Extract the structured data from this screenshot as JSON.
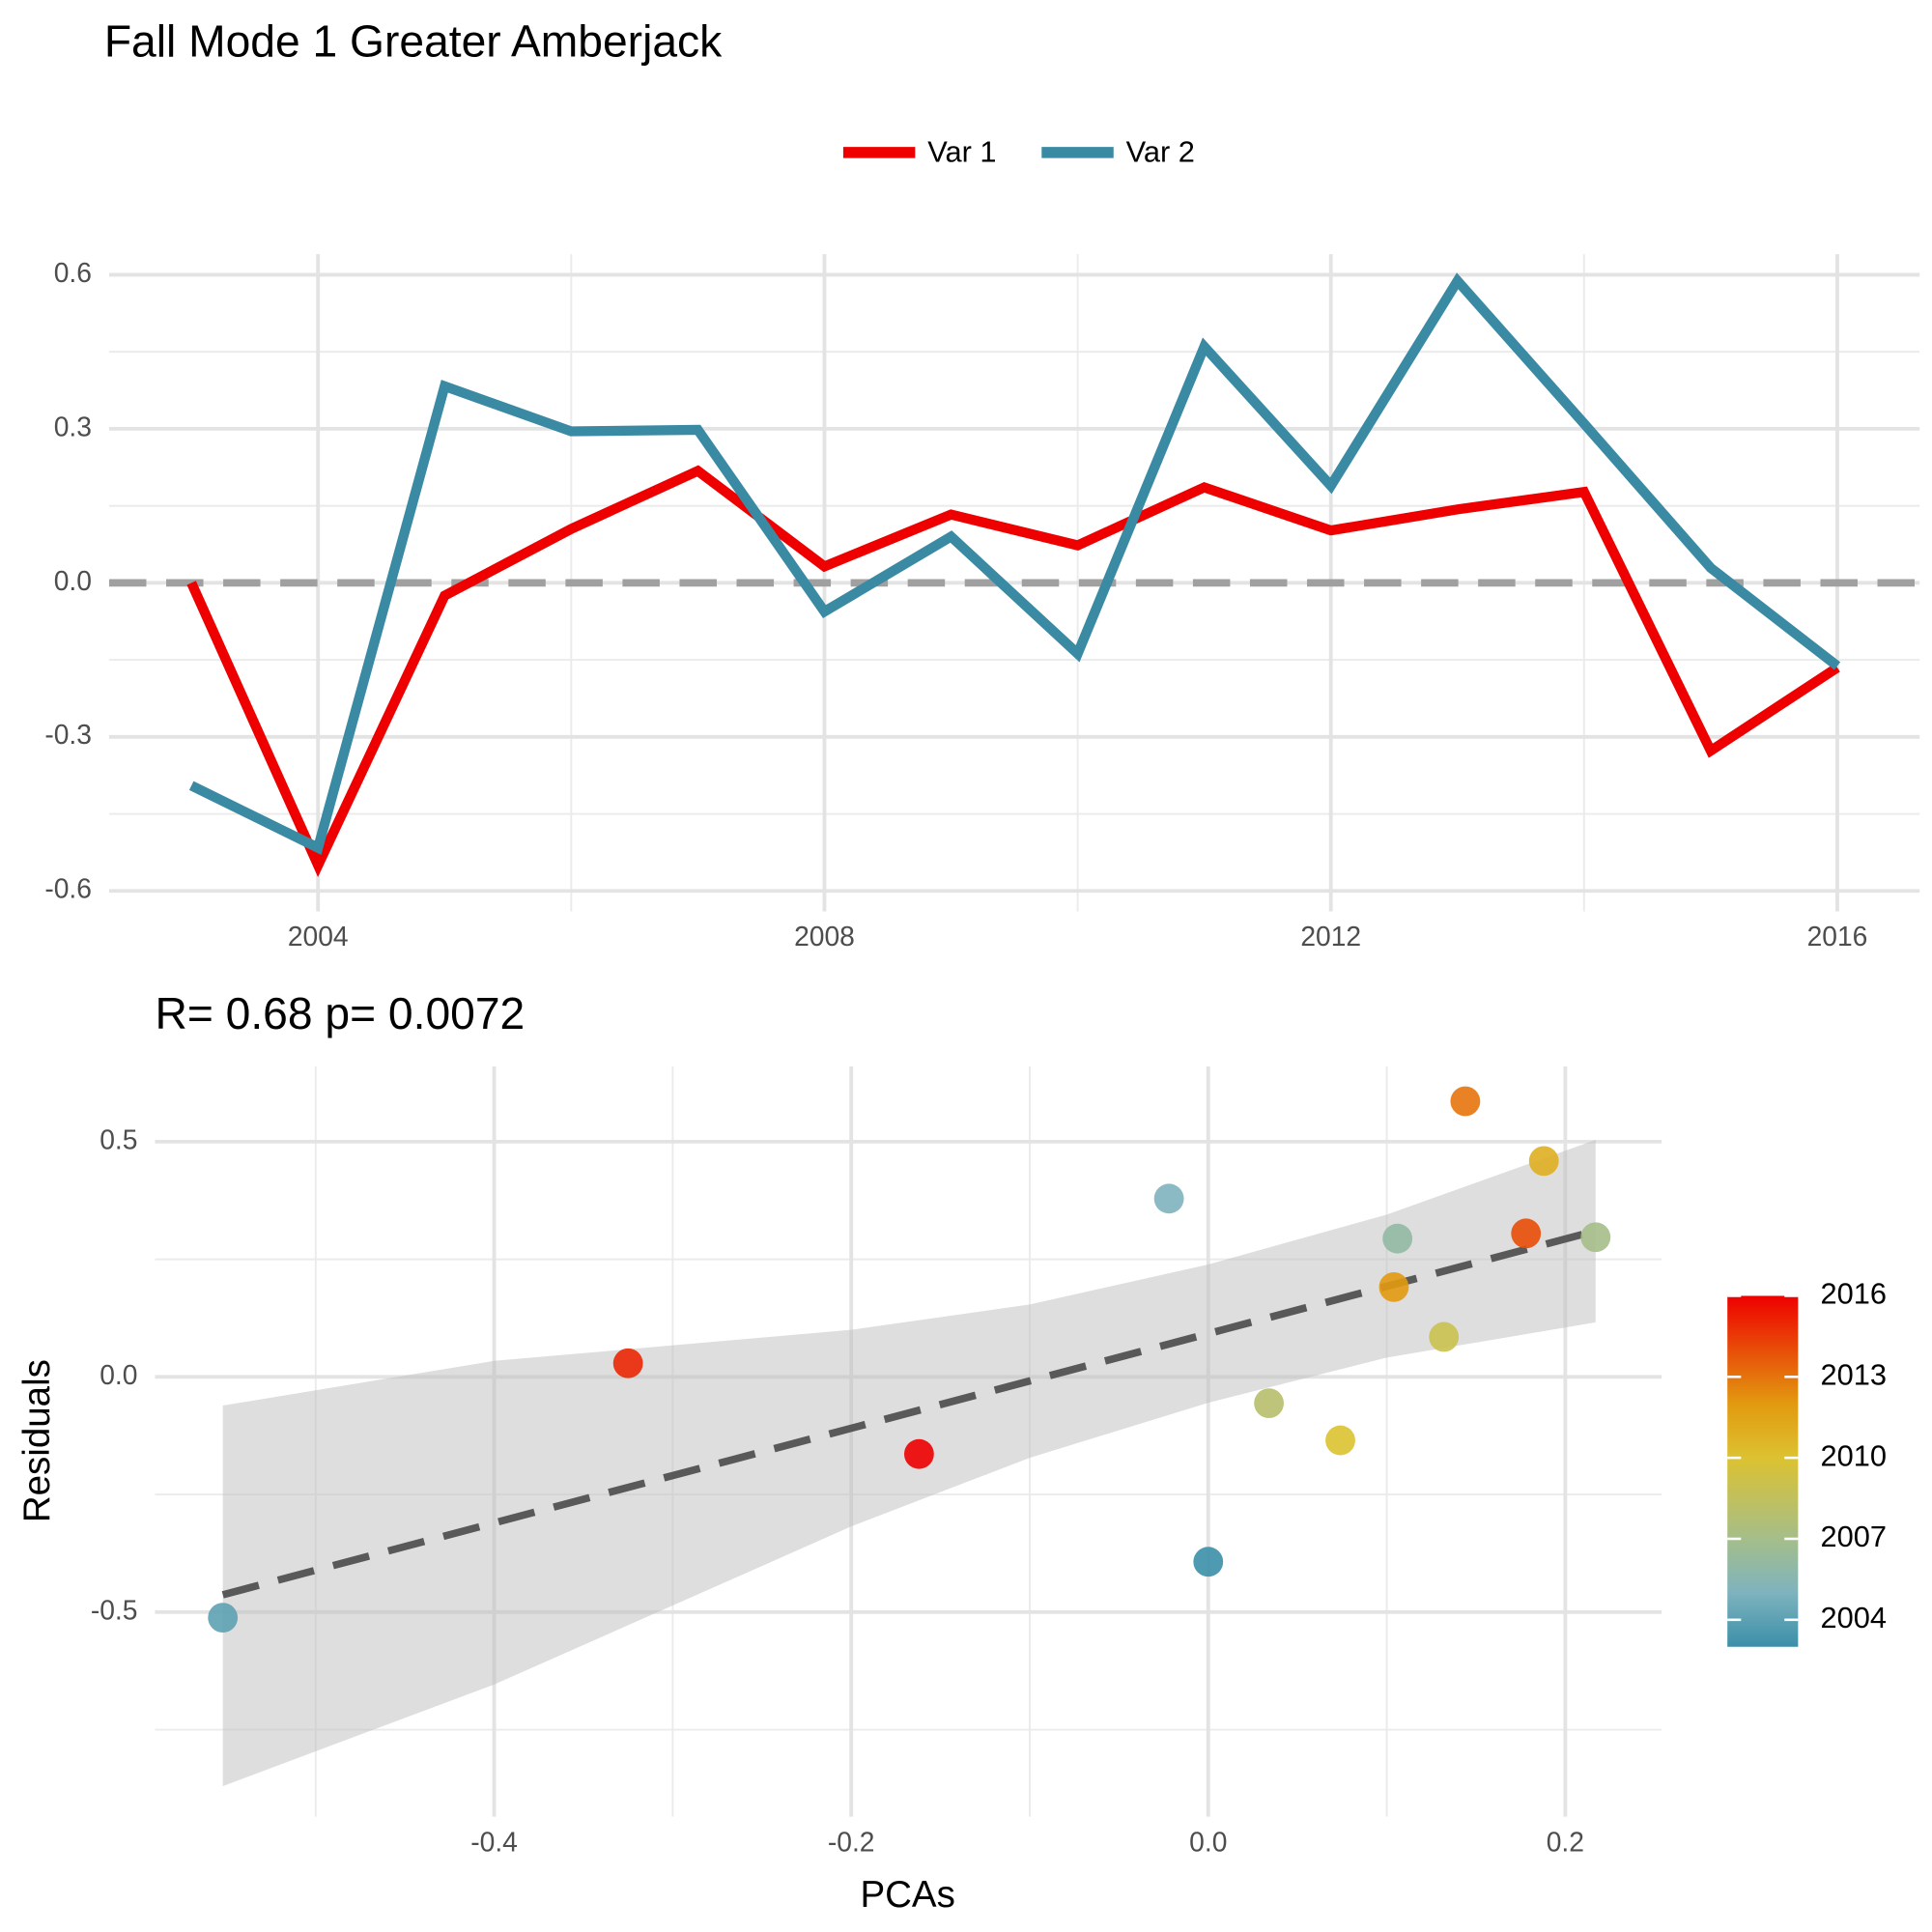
{
  "chart_data": [
    {
      "type": "line",
      "title": "Fall Mode 1 Greater Amberjack",
      "x": [
        2003,
        2004,
        2005,
        2006,
        2007,
        2008,
        2009,
        2010,
        2011,
        2012,
        2013,
        2014,
        2015,
        2016
      ],
      "series": [
        {
          "name": "Var 1",
          "color": "#ee0000",
          "values": [
            0,
            -0.55,
            -0.025,
            0.105,
            0.218,
            0.032,
            0.133,
            0.073,
            0.186,
            0.102,
            0.143,
            0.177,
            -0.327,
            -0.165
          ]
        },
        {
          "name": "Var 2",
          "color": "#3a8aa3",
          "values": [
            -0.395,
            -0.516,
            0.383,
            0.295,
            0.298,
            -0.056,
            0.09,
            -0.138,
            0.46,
            0.189,
            0.588,
            0.31,
            0.029,
            -0.162
          ]
        }
      ],
      "xlim": [
        2002.35,
        2016.65
      ],
      "xticks": [
        2004,
        2008,
        2012,
        2016
      ],
      "ylim": [
        -0.64,
        0.64
      ],
      "yticks": [
        -0.6,
        -0.3,
        {
          "value": 0,
          "label": "0.0"
        },
        0.3,
        0.6
      ],
      "reference_line": 0,
      "grid": true
    },
    {
      "type": "scatter",
      "title": "R= 0.68  p= 0.0072",
      "x_label": "PCAs",
      "y_label": "Residuals",
      "x": [
        0,
        -0.552,
        -0.022,
        0.106,
        0.217,
        0.034,
        0.132,
        0.074,
        0.188,
        0.104,
        0.144,
        0.178,
        -0.325,
        -0.162
      ],
      "values": [
        -0.393,
        -0.512,
        0.379,
        0.294,
        0.297,
        -0.056,
        0.085,
        -0.135,
        0.459,
        0.191,
        0.586,
        0.305,
        0.029,
        -0.164
      ],
      "color_values": [
        2003,
        2004,
        2005,
        2006,
        2007,
        2008,
        2009,
        2010,
        2011,
        2012,
        2013,
        2014,
        2015,
        2016
      ],
      "color_scale": {
        "lim": [
          2003,
          2016
        ],
        "ticks": [
          2004,
          2007,
          2010,
          2013,
          2016
        ],
        "stops": [
          2003,
          2005,
          2007,
          2010,
          2012,
          2016
        ],
        "colors": [
          "#3b8fa8",
          "#7eb3be",
          "#a5be8a",
          "#dcc230",
          "#e29a10",
          "#ee0000"
        ]
      },
      "fit": {
        "intercept": 0.092,
        "slope": 1.006,
        "color": "#595959"
      },
      "band": {
        "x": [
          -0.552,
          -0.4,
          -0.2,
          -0.1,
          0,
          0.1,
          0.217
        ],
        "upper": [
          -0.061,
          0.034,
          0.1,
          0.154,
          0.239,
          0.345,
          0.504
        ],
        "lower": [
          -0.87,
          -0.654,
          -0.318,
          -0.172,
          -0.055,
          0.041,
          0.116
        ]
      },
      "xlim": [
        -0.59,
        0.254
      ],
      "xticks": [
        -0.4,
        -0.2,
        {
          "value": 0,
          "label": "0.0"
        },
        0.2
      ],
      "ylim": [
        -0.935,
        0.66
      ],
      "yticks": [
        -0.5,
        {
          "value": 0,
          "label": "0.0"
        },
        0.5
      ],
      "grid": true
    }
  ]
}
